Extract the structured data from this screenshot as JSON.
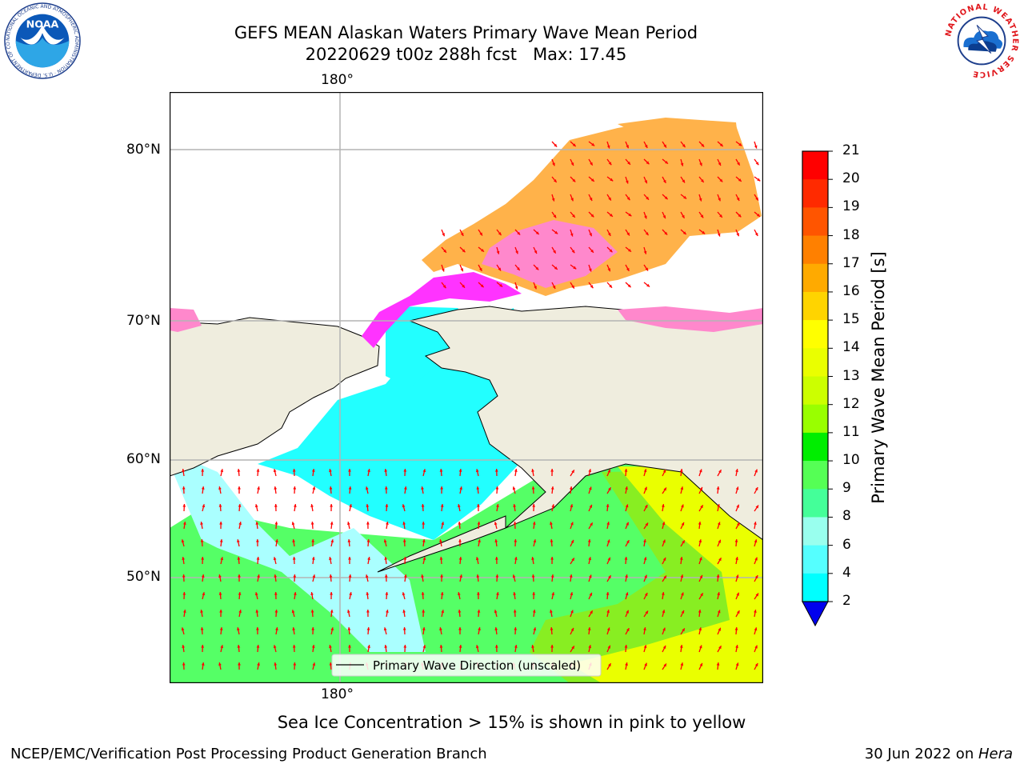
{
  "title": {
    "line1": "GEFS MEAN Alaskan Waters Primary Wave Mean Period",
    "line2": "20220629 t00z 288h fcst   Max: 17.45"
  },
  "axes": {
    "top_lon_label": "180°",
    "bottom_lon_label": "180°",
    "lat_labels": [
      "80°N",
      "70°N",
      "60°N",
      "50°N"
    ]
  },
  "legend": {
    "label": "Primary Wave Direction (unscaled)"
  },
  "colorbar": {
    "title": "Primary Wave Mean Period [s]",
    "ticks": [
      "21",
      "20",
      "19",
      "18",
      "17",
      "16",
      "15",
      "14",
      "13",
      "12",
      "11",
      "10",
      "9",
      "8",
      "6",
      "4",
      "2"
    ],
    "colors": [
      "#ff0000",
      "#ff2a00",
      "#ff5500",
      "#ff8000",
      "#ffaa00",
      "#ffd400",
      "#ffff00",
      "#eaff00",
      "#ccff00",
      "#99ff00",
      "#00ee00",
      "#55ff55",
      "#44ff99",
      "#99ffee",
      "#55ffff",
      "#00ffff",
      "#0088ff"
    ],
    "extend_color": "#0000ee"
  },
  "caption": "Sea Ice Concentration > 15% is shown in pink to yellow",
  "footer": {
    "left": "NCEP/EMC/Verification Post Processing Product Generation Branch",
    "right_date": "30 Jun 2022 on ",
    "right_machine": "Hera"
  },
  "logos": {
    "noaa_text": "NOAA",
    "noaa_ring": "NATIONAL OCEANIC AND ATMOSPHERIC ADMINISTRATION · U.S. DEPARTMENT OF COMMERCE ·",
    "nws_ring": "NATIONAL WEATHER SERVICE"
  },
  "map_colors": {
    "land": "#efedde",
    "ice_pink": "#ff88cc",
    "ice_magenta": "#ff33ff",
    "ice_orange": "#ffb24a",
    "water_cyan": "#22ffff",
    "water_light": "#aaffff",
    "water_green": "#55ff66",
    "water_lime": "#88ee22",
    "water_yellow": "#eaff00",
    "arrow": "#ff0000",
    "grid": "#b4b4b4"
  }
}
